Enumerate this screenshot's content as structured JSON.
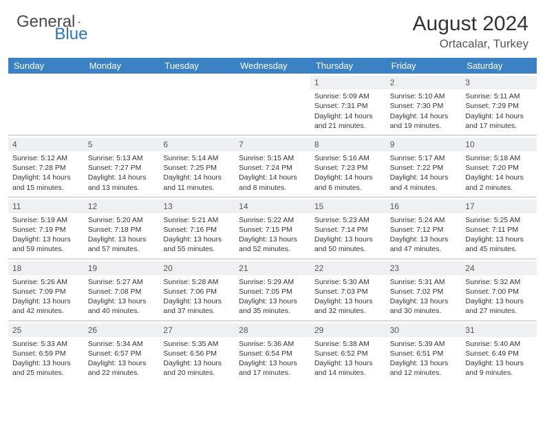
{
  "logo": {
    "text1": "General",
    "text2": "Blue"
  },
  "title": "August 2024",
  "location": "Ortacalar, Turkey",
  "colors": {
    "header_bg": "#3b82c4",
    "daynum_bg": "#eef0f2",
    "logo_blue": "#2b74b8",
    "border": "#bbbbbb"
  },
  "days_of_week": [
    "Sunday",
    "Monday",
    "Tuesday",
    "Wednesday",
    "Thursday",
    "Friday",
    "Saturday"
  ],
  "weeks": [
    [
      null,
      null,
      null,
      null,
      {
        "d": "1",
        "sr": "5:09 AM",
        "ss": "7:31 PM",
        "dl": "14 hours and 21 minutes."
      },
      {
        "d": "2",
        "sr": "5:10 AM",
        "ss": "7:30 PM",
        "dl": "14 hours and 19 minutes."
      },
      {
        "d": "3",
        "sr": "5:11 AM",
        "ss": "7:29 PM",
        "dl": "14 hours and 17 minutes."
      }
    ],
    [
      {
        "d": "4",
        "sr": "5:12 AM",
        "ss": "7:28 PM",
        "dl": "14 hours and 15 minutes."
      },
      {
        "d": "5",
        "sr": "5:13 AM",
        "ss": "7:27 PM",
        "dl": "14 hours and 13 minutes."
      },
      {
        "d": "6",
        "sr": "5:14 AM",
        "ss": "7:25 PM",
        "dl": "14 hours and 11 minutes."
      },
      {
        "d": "7",
        "sr": "5:15 AM",
        "ss": "7:24 PM",
        "dl": "14 hours and 8 minutes."
      },
      {
        "d": "8",
        "sr": "5:16 AM",
        "ss": "7:23 PM",
        "dl": "14 hours and 6 minutes."
      },
      {
        "d": "9",
        "sr": "5:17 AM",
        "ss": "7:22 PM",
        "dl": "14 hours and 4 minutes."
      },
      {
        "d": "10",
        "sr": "5:18 AM",
        "ss": "7:20 PM",
        "dl": "14 hours and 2 minutes."
      }
    ],
    [
      {
        "d": "11",
        "sr": "5:19 AM",
        "ss": "7:19 PM",
        "dl": "13 hours and 59 minutes."
      },
      {
        "d": "12",
        "sr": "5:20 AM",
        "ss": "7:18 PM",
        "dl": "13 hours and 57 minutes."
      },
      {
        "d": "13",
        "sr": "5:21 AM",
        "ss": "7:16 PM",
        "dl": "13 hours and 55 minutes."
      },
      {
        "d": "14",
        "sr": "5:22 AM",
        "ss": "7:15 PM",
        "dl": "13 hours and 52 minutes."
      },
      {
        "d": "15",
        "sr": "5:23 AM",
        "ss": "7:14 PM",
        "dl": "13 hours and 50 minutes."
      },
      {
        "d": "16",
        "sr": "5:24 AM",
        "ss": "7:12 PM",
        "dl": "13 hours and 47 minutes."
      },
      {
        "d": "17",
        "sr": "5:25 AM",
        "ss": "7:11 PM",
        "dl": "13 hours and 45 minutes."
      }
    ],
    [
      {
        "d": "18",
        "sr": "5:26 AM",
        "ss": "7:09 PM",
        "dl": "13 hours and 42 minutes."
      },
      {
        "d": "19",
        "sr": "5:27 AM",
        "ss": "7:08 PM",
        "dl": "13 hours and 40 minutes."
      },
      {
        "d": "20",
        "sr": "5:28 AM",
        "ss": "7:06 PM",
        "dl": "13 hours and 37 minutes."
      },
      {
        "d": "21",
        "sr": "5:29 AM",
        "ss": "7:05 PM",
        "dl": "13 hours and 35 minutes."
      },
      {
        "d": "22",
        "sr": "5:30 AM",
        "ss": "7:03 PM",
        "dl": "13 hours and 32 minutes."
      },
      {
        "d": "23",
        "sr": "5:31 AM",
        "ss": "7:02 PM",
        "dl": "13 hours and 30 minutes."
      },
      {
        "d": "24",
        "sr": "5:32 AM",
        "ss": "7:00 PM",
        "dl": "13 hours and 27 minutes."
      }
    ],
    [
      {
        "d": "25",
        "sr": "5:33 AM",
        "ss": "6:59 PM",
        "dl": "13 hours and 25 minutes."
      },
      {
        "d": "26",
        "sr": "5:34 AM",
        "ss": "6:57 PM",
        "dl": "13 hours and 22 minutes."
      },
      {
        "d": "27",
        "sr": "5:35 AM",
        "ss": "6:56 PM",
        "dl": "13 hours and 20 minutes."
      },
      {
        "d": "28",
        "sr": "5:36 AM",
        "ss": "6:54 PM",
        "dl": "13 hours and 17 minutes."
      },
      {
        "d": "29",
        "sr": "5:38 AM",
        "ss": "6:52 PM",
        "dl": "13 hours and 14 minutes."
      },
      {
        "d": "30",
        "sr": "5:39 AM",
        "ss": "6:51 PM",
        "dl": "13 hours and 12 minutes."
      },
      {
        "d": "31",
        "sr": "5:40 AM",
        "ss": "6:49 PM",
        "dl": "13 hours and 9 minutes."
      }
    ]
  ],
  "labels": {
    "sunrise": "Sunrise: ",
    "sunset": "Sunset: ",
    "daylight": "Daylight: "
  }
}
